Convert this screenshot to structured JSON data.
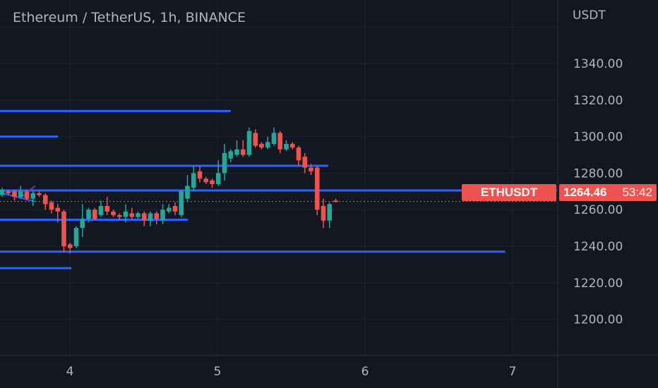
{
  "header": {
    "title": "Ethereum / TetherUS, 1h, BINANCE"
  },
  "price_axis": {
    "unit": "USDT"
  },
  "last_price": {
    "symbol": "ETHUSDT",
    "price": "1264.46",
    "countdown": "53:42"
  },
  "colors": {
    "background": "#131722",
    "up": "#26a69a",
    "down": "#ef5350",
    "drawing_lines": "#2962ff",
    "trend_line": "#673ab7",
    "text": "#b2b5be",
    "grid": "#1f2330"
  },
  "chart_data": {
    "type": "candlestick",
    "title": "Ethereum / TetherUS, 1h, BINANCE",
    "interval": "1h",
    "ylabel": "USDT",
    "ylim": [
      1180,
      1360
    ],
    "xlim": [
      3.54,
      7.3
    ],
    "yticks": [
      1200,
      1220,
      1240,
      1260,
      1280,
      1300,
      1320,
      1340
    ],
    "ytick_labels": [
      "1200.00",
      "1220.00",
      "1240.00",
      "1260.00",
      "1280.00",
      "1300.00",
      "1320.00",
      "1340.00"
    ],
    "xticks": [
      4,
      5,
      6,
      7
    ],
    "xtick_labels": [
      "4",
      "5",
      "6",
      "7"
    ],
    "grid": true,
    "candles_ohlc": [
      [
        1268,
        1272,
        1267,
        1271
      ],
      [
        1270,
        1271,
        1268,
        1269
      ],
      [
        1270,
        1271,
        1265,
        1267
      ],
      [
        1267,
        1273,
        1266,
        1270
      ],
      [
        1270,
        1271,
        1265,
        1266
      ],
      [
        1266,
        1270,
        1262,
        1269
      ],
      [
        1269,
        1270,
        1267,
        1268
      ],
      [
        1268,
        1269,
        1260,
        1263
      ],
      [
        1264,
        1265,
        1258,
        1260
      ],
      [
        1261,
        1263,
        1253,
        1259
      ],
      [
        1259,
        1260,
        1237,
        1240
      ],
      [
        1241,
        1242,
        1236,
        1239
      ],
      [
        1240,
        1251,
        1239,
        1250
      ],
      [
        1250,
        1263,
        1245,
        1255
      ],
      [
        1255,
        1261,
        1253,
        1260
      ],
      [
        1260,
        1261,
        1254,
        1255
      ],
      [
        1257,
        1265,
        1256,
        1262
      ],
      [
        1262,
        1267,
        1257,
        1259
      ],
      [
        1259,
        1260,
        1256,
        1257
      ],
      [
        1257,
        1258,
        1254,
        1256
      ],
      [
        1256,
        1263,
        1253,
        1259
      ],
      [
        1258,
        1261,
        1255,
        1256
      ],
      [
        1256,
        1259,
        1255,
        1258
      ],
      [
        1258,
        1259,
        1251,
        1254
      ],
      [
        1254,
        1259,
        1251,
        1258
      ],
      [
        1258,
        1259,
        1252,
        1255
      ],
      [
        1254,
        1263,
        1252,
        1260
      ],
      [
        1259,
        1263,
        1258,
        1261
      ],
      [
        1262,
        1264,
        1257,
        1259
      ],
      [
        1257,
        1271,
        1256,
        1270
      ],
      [
        1266,
        1279,
        1264,
        1273
      ],
      [
        1272,
        1284,
        1270,
        1280
      ],
      [
        1281,
        1284,
        1275,
        1277
      ],
      [
        1277,
        1278,
        1274,
        1275
      ],
      [
        1276,
        1277,
        1272,
        1274
      ],
      [
        1274,
        1287,
        1273,
        1280
      ],
      [
        1280,
        1296,
        1276,
        1291
      ],
      [
        1288,
        1293,
        1286,
        1292
      ],
      [
        1290,
        1298,
        1289,
        1293
      ],
      [
        1293,
        1298,
        1289,
        1290
      ],
      [
        1290,
        1305,
        1289,
        1303
      ],
      [
        1302,
        1304,
        1294,
        1295
      ],
      [
        1296,
        1297,
        1293,
        1294
      ],
      [
        1294,
        1300,
        1293,
        1297
      ],
      [
        1296,
        1305,
        1295,
        1302
      ],
      [
        1302,
        1303,
        1291,
        1293
      ],
      [
        1293,
        1298,
        1292,
        1296
      ],
      [
        1296,
        1297,
        1293,
        1294
      ],
      [
        1294,
        1295,
        1284,
        1287
      ],
      [
        1289,
        1291,
        1280,
        1283
      ],
      [
        1283,
        1285,
        1279,
        1281
      ],
      [
        1283,
        1284,
        1257,
        1260
      ],
      [
        1262,
        1266,
        1250,
        1254
      ],
      [
        1254,
        1264,
        1250,
        1263
      ],
      [
        1265,
        1266,
        1264,
        1264.46
      ]
    ],
    "horizontal_lines": [
      {
        "price": 1314,
        "end_day": 5.09
      },
      {
        "price": 1300,
        "end_day": 3.92
      },
      {
        "price": 1284,
        "end_day": 5.75
      },
      {
        "price": 1270.5,
        "end_day": 7.3
      },
      {
        "price": 1254.5,
        "end_day": 4.8
      },
      {
        "price": 1237,
        "end_day": 6.95
      },
      {
        "price": 1228,
        "end_day": 4.01
      }
    ],
    "trend_lines": [
      {
        "from": [
          3.54,
          1269
        ],
        "to": [
          3.764,
          1264.5
        ],
        "color": "#2962ff"
      },
      {
        "from": [
          3.66,
          1266
        ],
        "to": [
          3.764,
          1273
        ],
        "color": "#673ab7"
      }
    ],
    "last_price_line": 1264.46
  }
}
